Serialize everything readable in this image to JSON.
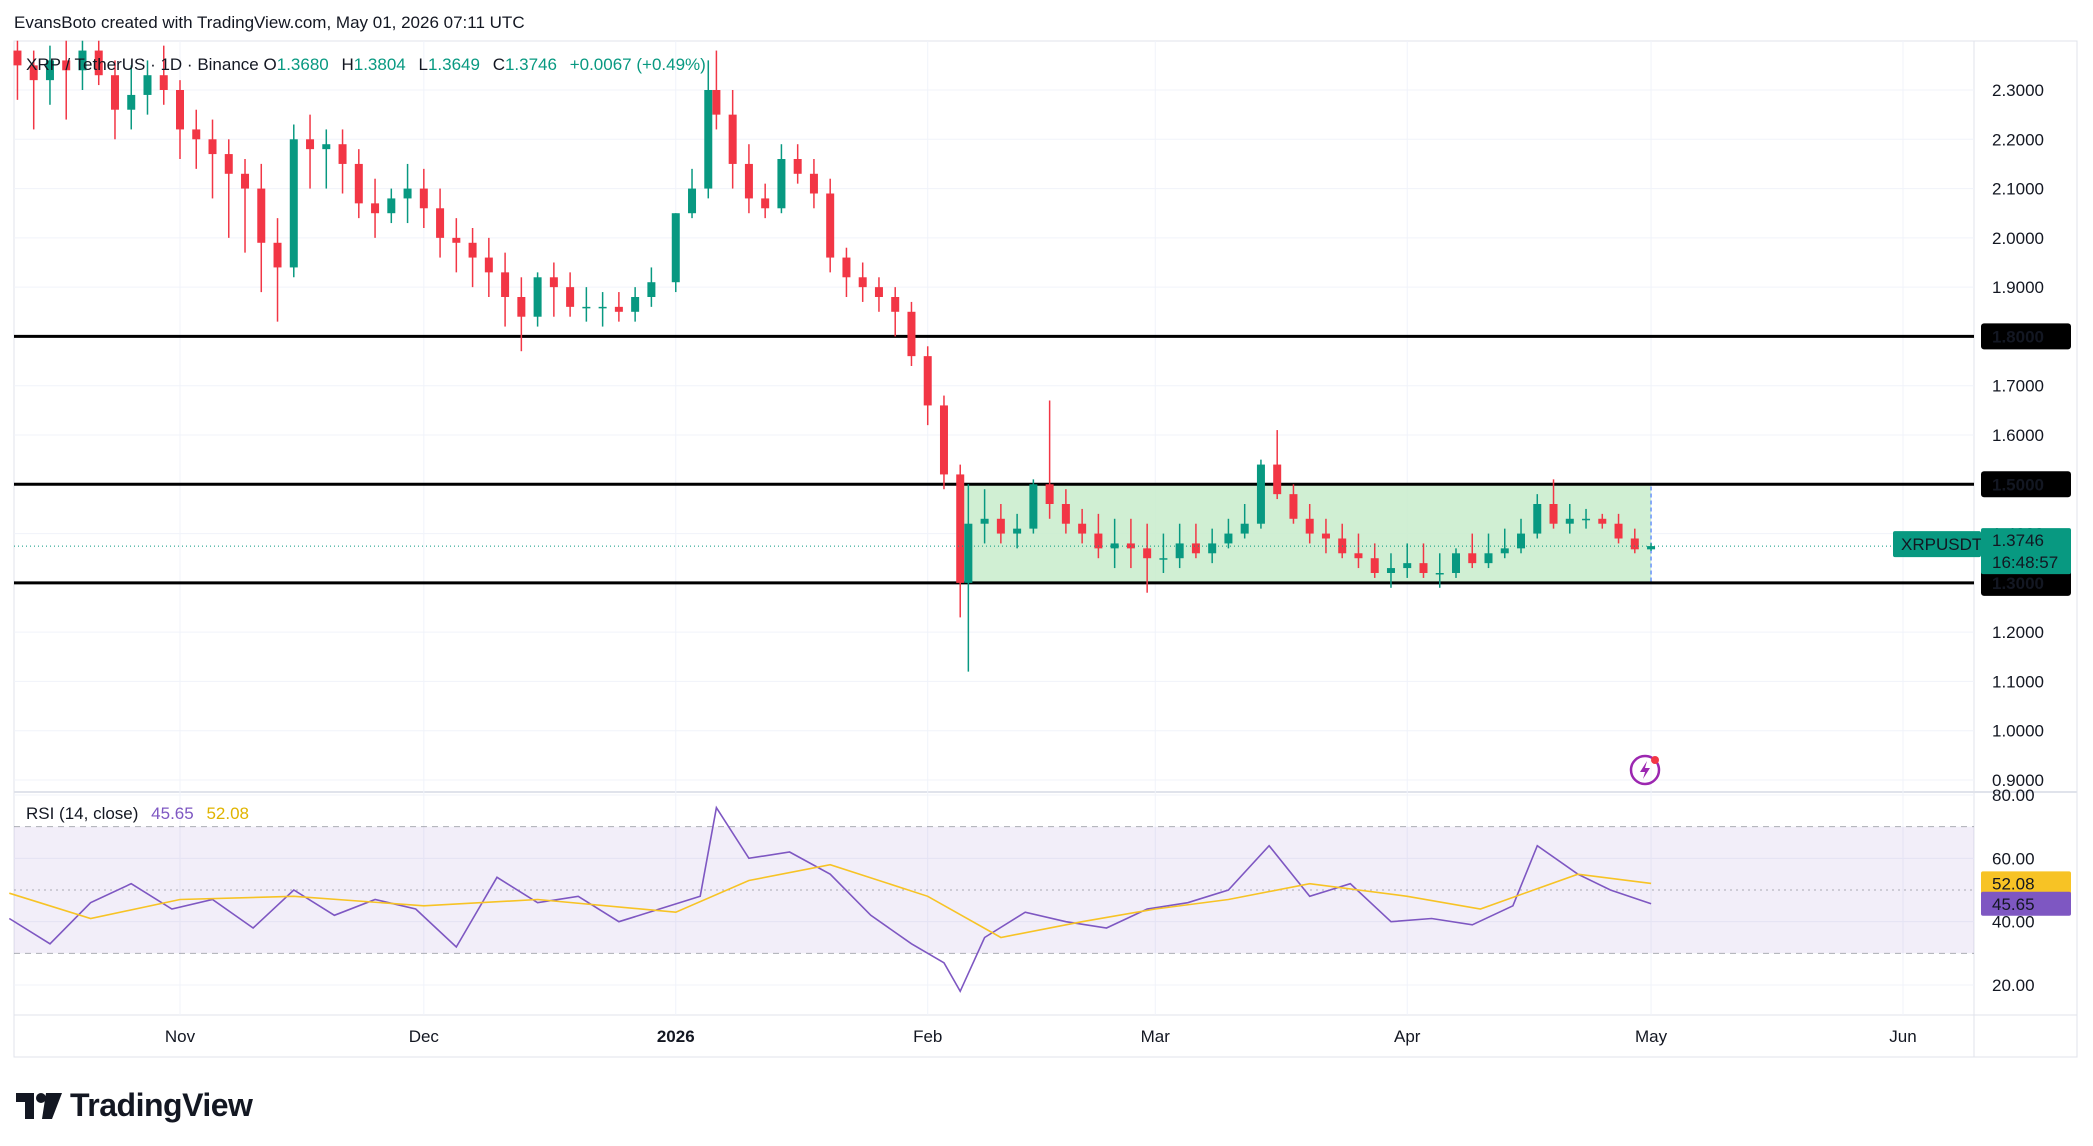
{
  "attribution": "EvansBoto created with TradingView.com, May 01, 2026 07:11 UTC",
  "header": {
    "symbol": "XRP / TetherUS · 1D · Binance",
    "open_label": "O",
    "open": "1.3680",
    "high_label": "H",
    "high": "1.3804",
    "low_label": "L",
    "low": "1.3649",
    "close_label": "C",
    "close": "1.3746",
    "change": "+0.0067 (+0.49%)"
  },
  "rsi_header": {
    "label": "RSI (14, close)",
    "value": "45.65",
    "ma_value": "52.08"
  },
  "price_axis": {
    "ticks": [
      "2.3000",
      "2.2000",
      "2.1000",
      "2.0000",
      "1.9000",
      "1.8000",
      "1.7000",
      "1.6000",
      "1.5000",
      "1.4000",
      "1.3000",
      "1.2000",
      "1.1000",
      "1.0000",
      "0.9000"
    ],
    "levels": [
      "1.8000",
      "1.5000",
      "1.3000"
    ],
    "symbol_tag": "XRPUSDT",
    "last_price": "1.3746",
    "countdown": "16:48:57"
  },
  "rsi_axis": {
    "ticks": [
      "80.00",
      "60.00",
      "40.00",
      "20.00"
    ],
    "ma_badge": "52.08",
    "rsi_badge": "45.65"
  },
  "time_axis": {
    "labels": [
      "Nov",
      "Dec",
      "2026",
      "Feb",
      "Mar",
      "Apr",
      "May",
      "Jun"
    ]
  },
  "logo": {
    "text": "TradingView"
  },
  "colors": {
    "up": "#089981",
    "down": "#f23645",
    "rsi": "#7e57c2",
    "rsi_ma": "#f7c325",
    "range_box": "#c8eccb",
    "range_border": "#2962ff"
  },
  "chart_data": [
    {
      "type": "candlestick",
      "title": "XRP / TetherUS · 1D · Binance",
      "x_range": [
        "2025-10-11",
        "2026-06-30"
      ],
      "ylim": [
        0.88,
        2.38
      ],
      "horizontal_lines": [
        1.8,
        1.5,
        1.3
      ],
      "range_box": {
        "x": [
          "2026-02-05",
          "2026-05-01"
        ],
        "y": [
          1.3,
          1.5
        ]
      },
      "last_close": 1.3746,
      "series": [
        {
          "name": "XRPUSDT",
          "dates": [
            "2025-10-12",
            "2025-10-14",
            "2025-10-16",
            "2025-10-18",
            "2025-10-20",
            "2025-10-22",
            "2025-10-24",
            "2025-10-26",
            "2025-10-28",
            "2025-10-30",
            "2025-11-01",
            "2025-11-03",
            "2025-11-05",
            "2025-11-07",
            "2025-11-09",
            "2025-11-11",
            "2025-11-13",
            "2025-11-15",
            "2025-11-17",
            "2025-11-19",
            "2025-11-21",
            "2025-11-23",
            "2025-11-25",
            "2025-11-27",
            "2025-11-29",
            "2025-12-01",
            "2025-12-03",
            "2025-12-05",
            "2025-12-07",
            "2025-12-09",
            "2025-12-11",
            "2025-12-13",
            "2025-12-15",
            "2025-12-17",
            "2025-12-19",
            "2025-12-21",
            "2025-12-23",
            "2025-12-25",
            "2025-12-27",
            "2025-12-29",
            "2026-01-01",
            "2026-01-03",
            "2026-01-05",
            "2026-01-06",
            "2026-01-08",
            "2026-01-10",
            "2026-01-12",
            "2026-01-14",
            "2026-01-16",
            "2026-01-18",
            "2026-01-20",
            "2026-01-22",
            "2026-01-24",
            "2026-01-26",
            "2026-01-28",
            "2026-01-30",
            "2026-02-01",
            "2026-02-03",
            "2026-02-05",
            "2026-02-06",
            "2026-02-08",
            "2026-02-10",
            "2026-02-12",
            "2026-02-14",
            "2026-02-16",
            "2026-02-18",
            "2026-02-20",
            "2026-02-22",
            "2026-02-24",
            "2026-02-26",
            "2026-02-28",
            "2026-03-02",
            "2026-03-04",
            "2026-03-06",
            "2026-03-08",
            "2026-03-10",
            "2026-03-12",
            "2026-03-14",
            "2026-03-16",
            "2026-03-18",
            "2026-03-20",
            "2026-03-22",
            "2026-03-24",
            "2026-03-26",
            "2026-03-28",
            "2026-03-30",
            "2026-04-01",
            "2026-04-03",
            "2026-04-05",
            "2026-04-07",
            "2026-04-09",
            "2026-04-11",
            "2026-04-13",
            "2026-04-15",
            "2026-04-17",
            "2026-04-19",
            "2026-04-21",
            "2026-04-23",
            "2026-04-25",
            "2026-04-27",
            "2026-04-29",
            "2026-05-01"
          ],
          "open": [
            2.38,
            2.35,
            2.32,
            2.36,
            2.34,
            2.38,
            2.33,
            2.26,
            2.29,
            2.33,
            2.3,
            2.22,
            2.2,
            2.17,
            2.13,
            2.1,
            1.99,
            1.94,
            2.2,
            2.18,
            2.19,
            2.15,
            2.07,
            2.05,
            2.08,
            2.1,
            2.06,
            2.0,
            1.99,
            1.96,
            1.93,
            1.88,
            1.84,
            1.92,
            1.9,
            1.86,
            1.86,
            1.86,
            1.85,
            1.88,
            1.91,
            2.05,
            2.1,
            2.3,
            2.25,
            2.15,
            2.08,
            2.06,
            2.16,
            2.13,
            2.09,
            1.96,
            1.92,
            1.9,
            1.88,
            1.85,
            1.76,
            1.66,
            1.52,
            1.3,
            1.42,
            1.43,
            1.4,
            1.41,
            1.5,
            1.46,
            1.42,
            1.4,
            1.37,
            1.38,
            1.37,
            1.35,
            1.35,
            1.38,
            1.36,
            1.38,
            1.4,
            1.42,
            1.54,
            1.48,
            1.43,
            1.4,
            1.39,
            1.36,
            1.35,
            1.32,
            1.33,
            1.34,
            1.32,
            1.32,
            1.36,
            1.34,
            1.36,
            1.37,
            1.4,
            1.46,
            1.42,
            1.43,
            1.43,
            1.42,
            1.39,
            1.368
          ],
          "high": [
            2.4,
            2.38,
            2.39,
            2.4,
            2.4,
            2.4,
            2.36,
            2.35,
            2.36,
            2.39,
            2.32,
            2.26,
            2.24,
            2.2,
            2.16,
            2.15,
            2.04,
            2.23,
            2.25,
            2.22,
            2.22,
            2.18,
            2.12,
            2.1,
            2.15,
            2.14,
            2.1,
            2.04,
            2.02,
            2.0,
            1.97,
            1.92,
            1.93,
            1.95,
            1.93,
            1.9,
            1.89,
            1.89,
            1.9,
            1.94,
            2.05,
            2.14,
            2.36,
            2.38,
            2.3,
            2.19,
            2.11,
            2.19,
            2.19,
            2.16,
            2.12,
            1.98,
            1.95,
            1.92,
            1.9,
            1.87,
            1.78,
            1.68,
            1.54,
            1.5,
            1.49,
            1.46,
            1.44,
            1.51,
            1.67,
            1.49,
            1.45,
            1.44,
            1.43,
            1.43,
            1.42,
            1.4,
            1.42,
            1.42,
            1.41,
            1.43,
            1.46,
            1.55,
            1.61,
            1.5,
            1.46,
            1.43,
            1.42,
            1.4,
            1.38,
            1.36,
            1.38,
            1.38,
            1.36,
            1.37,
            1.4,
            1.4,
            1.41,
            1.43,
            1.48,
            1.51,
            1.46,
            1.45,
            1.44,
            1.44,
            1.41,
            1.3804
          ],
          "low": [
            2.28,
            2.22,
            2.27,
            2.24,
            2.3,
            2.31,
            2.2,
            2.22,
            2.25,
            2.27,
            2.16,
            2.14,
            2.08,
            2.0,
            1.97,
            1.89,
            1.83,
            1.92,
            2.1,
            2.1,
            2.09,
            2.04,
            2.0,
            2.03,
            2.03,
            2.02,
            1.96,
            1.93,
            1.9,
            1.88,
            1.82,
            1.77,
            1.82,
            1.84,
            1.84,
            1.83,
            1.82,
            1.83,
            1.83,
            1.86,
            1.89,
            2.04,
            2.08,
            2.22,
            2.1,
            2.05,
            2.04,
            2.05,
            2.11,
            2.06,
            1.93,
            1.88,
            1.87,
            1.85,
            1.8,
            1.74,
            1.62,
            1.49,
            1.23,
            1.12,
            1.38,
            1.38,
            1.37,
            1.4,
            1.43,
            1.4,
            1.38,
            1.35,
            1.33,
            1.33,
            1.28,
            1.32,
            1.33,
            1.35,
            1.34,
            1.37,
            1.39,
            1.41,
            1.47,
            1.42,
            1.38,
            1.36,
            1.35,
            1.33,
            1.31,
            1.29,
            1.31,
            1.31,
            1.29,
            1.31,
            1.33,
            1.33,
            1.35,
            1.36,
            1.39,
            1.41,
            1.4,
            1.41,
            1.41,
            1.38,
            1.36,
            1.3649
          ],
          "close": [
            2.35,
            2.32,
            2.36,
            2.34,
            2.38,
            2.33,
            2.26,
            2.29,
            2.33,
            2.3,
            2.22,
            2.2,
            2.17,
            2.13,
            2.1,
            1.99,
            1.94,
            2.2,
            2.18,
            2.19,
            2.15,
            2.07,
            2.05,
            2.08,
            2.1,
            2.06,
            2.0,
            1.99,
            1.96,
            1.93,
            1.88,
            1.84,
            1.92,
            1.9,
            1.86,
            1.86,
            1.86,
            1.85,
            1.88,
            1.91,
            2.05,
            2.1,
            2.3,
            2.25,
            2.15,
            2.08,
            2.06,
            2.16,
            2.13,
            2.09,
            1.96,
            1.92,
            1.9,
            1.88,
            1.85,
            1.76,
            1.66,
            1.52,
            1.3,
            1.42,
            1.43,
            1.4,
            1.41,
            1.5,
            1.46,
            1.42,
            1.4,
            1.37,
            1.38,
            1.37,
            1.35,
            1.35,
            1.38,
            1.36,
            1.38,
            1.4,
            1.42,
            1.54,
            1.48,
            1.43,
            1.4,
            1.39,
            1.36,
            1.35,
            1.32,
            1.33,
            1.34,
            1.32,
            1.32,
            1.36,
            1.34,
            1.36,
            1.37,
            1.4,
            1.46,
            1.42,
            1.43,
            1.43,
            1.42,
            1.39,
            1.368,
            1.3746
          ]
        }
      ]
    },
    {
      "type": "line",
      "title": "RSI (14, close)",
      "ylim": [
        14,
        82
      ],
      "bands": [
        30,
        50,
        70
      ],
      "series": [
        {
          "name": "RSI",
          "dates": [
            "2025-10-11",
            "2025-10-16",
            "2025-10-21",
            "2025-10-26",
            "2025-10-31",
            "2025-11-05",
            "2025-11-10",
            "2025-11-15",
            "2025-11-20",
            "2025-11-25",
            "2025-11-30",
            "2025-12-05",
            "2025-12-10",
            "2025-12-15",
            "2025-12-20",
            "2025-12-25",
            "2025-12-30",
            "2026-01-04",
            "2026-01-06",
            "2026-01-10",
            "2026-01-15",
            "2026-01-20",
            "2026-01-25",
            "2026-01-30",
            "2026-02-03",
            "2026-02-05",
            "2026-02-08",
            "2026-02-13",
            "2026-02-18",
            "2026-02-23",
            "2026-02-28",
            "2026-03-05",
            "2026-03-10",
            "2026-03-15",
            "2026-03-20",
            "2026-03-25",
            "2026-03-30",
            "2026-04-04",
            "2026-04-09",
            "2026-04-14",
            "2026-04-17",
            "2026-04-22",
            "2026-04-26",
            "2026-05-01"
          ],
          "values": [
            41,
            33,
            46,
            52,
            44,
            47,
            38,
            50,
            42,
            47,
            44,
            32,
            54,
            46,
            48,
            40,
            44,
            48,
            76,
            60,
            62,
            55,
            42,
            33,
            27,
            18,
            35,
            43,
            40,
            38,
            44,
            46,
            50,
            64,
            48,
            52,
            40,
            41,
            39,
            45,
            64,
            55,
            50,
            45.65
          ]
        },
        {
          "name": "RSI-based MA",
          "dates": [
            "2025-10-11",
            "2025-10-21",
            "2025-11-01",
            "2025-11-15",
            "2025-12-01",
            "2025-12-15",
            "2026-01-01",
            "2026-01-10",
            "2026-01-20",
            "2026-02-01",
            "2026-02-10",
            "2026-02-20",
            "2026-03-01",
            "2026-03-10",
            "2026-03-20",
            "2026-04-01",
            "2026-04-10",
            "2026-04-22",
            "2026-05-01"
          ],
          "values": [
            49,
            41,
            47,
            48,
            45,
            47,
            43,
            53,
            58,
            48,
            35,
            40,
            44,
            47,
            52,
            48,
            44,
            55,
            52.08
          ]
        }
      ]
    }
  ]
}
